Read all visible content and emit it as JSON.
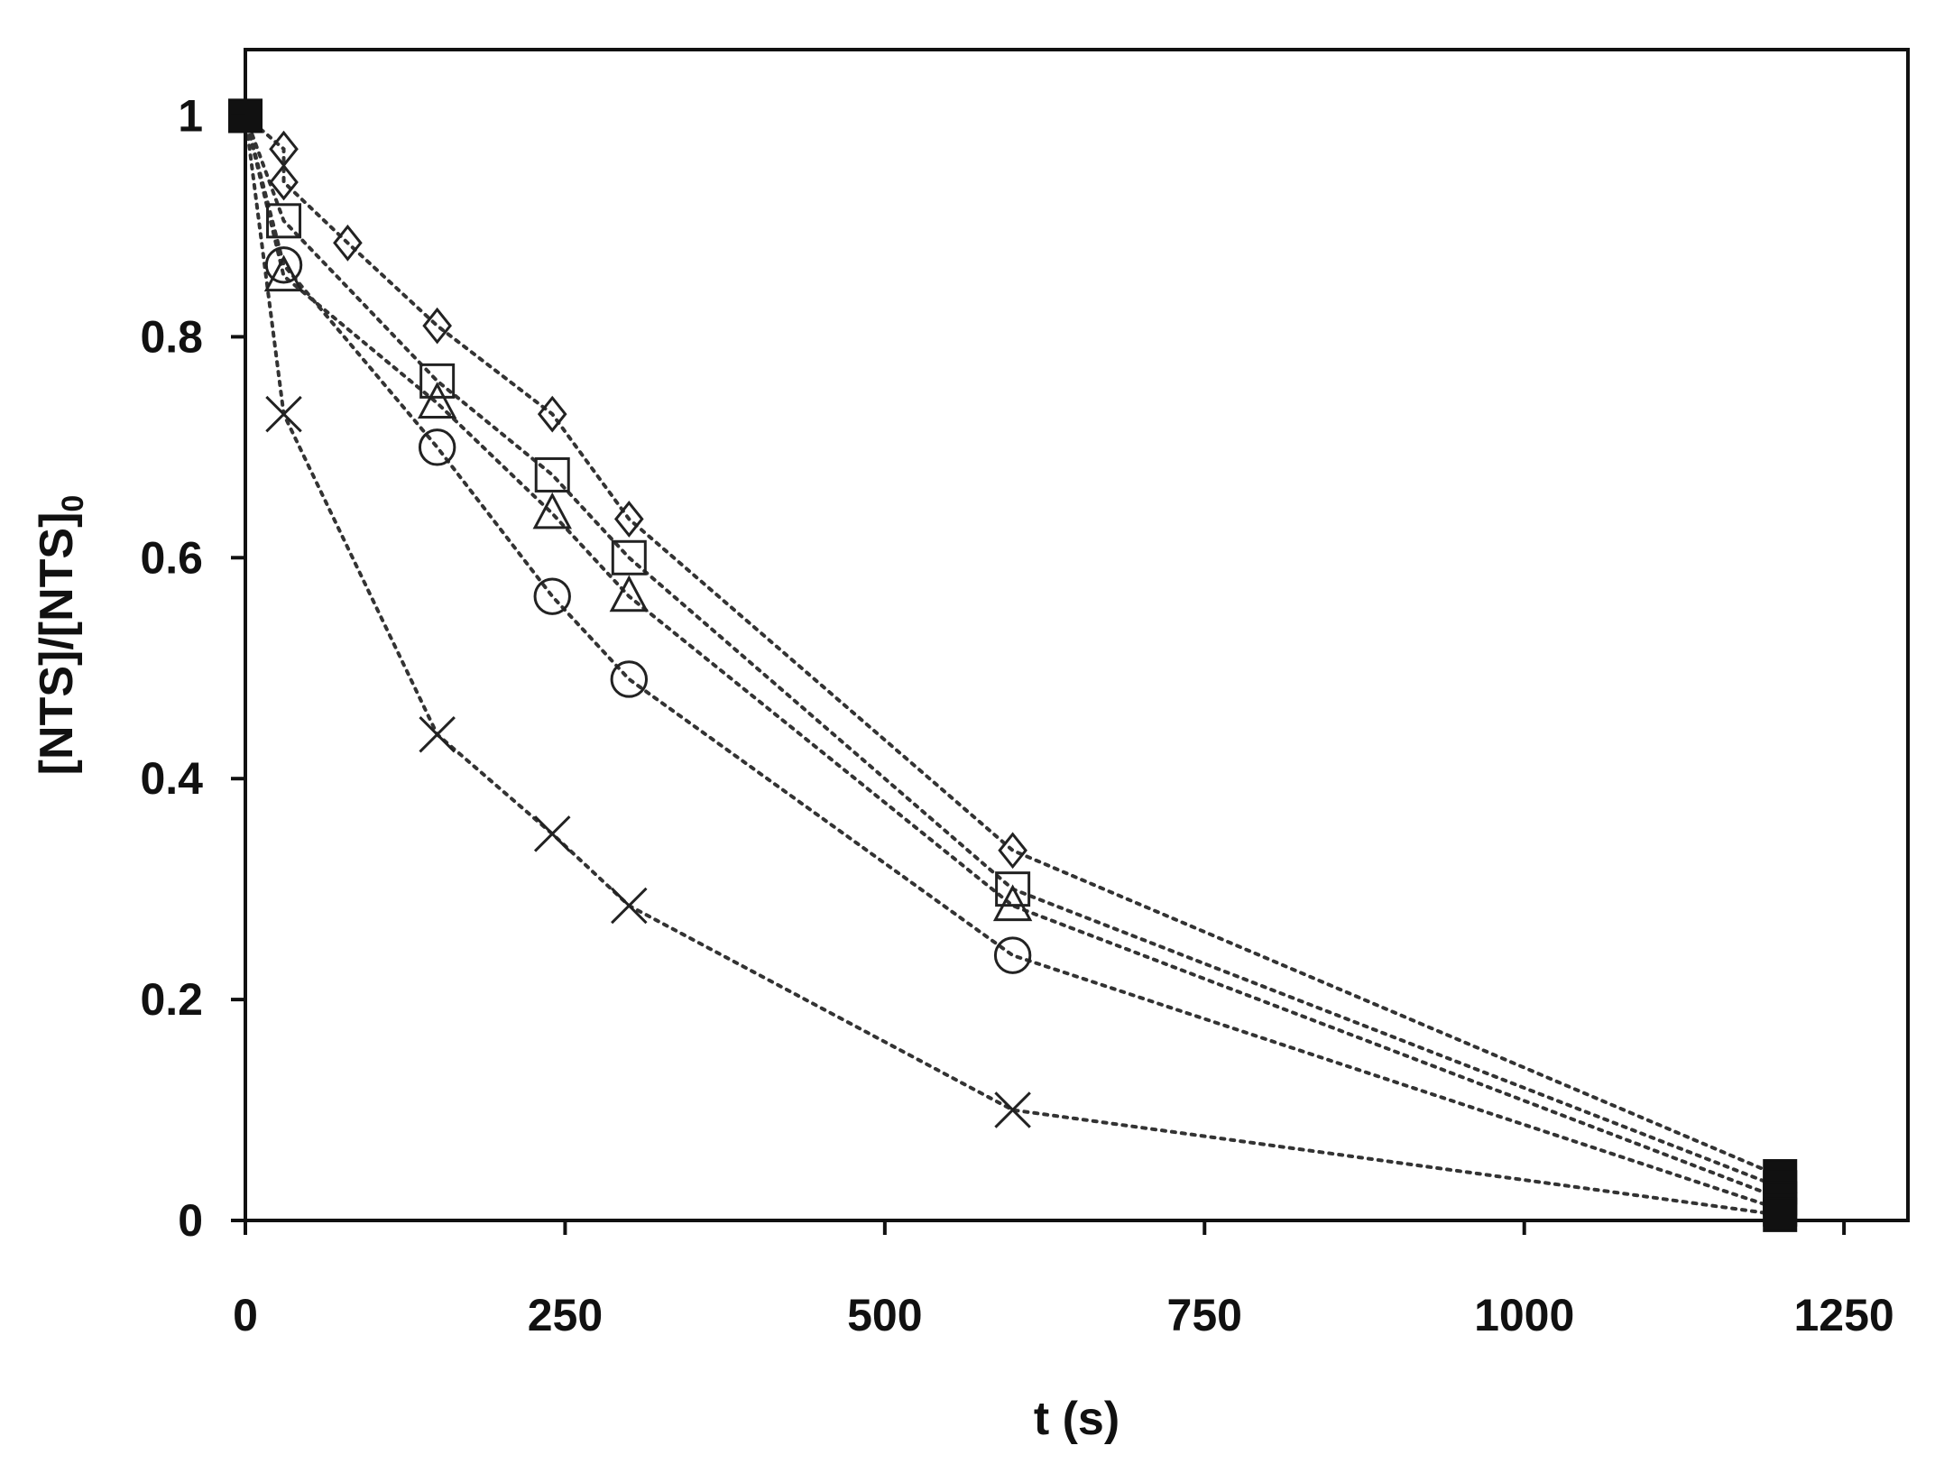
{
  "chart_data": {
    "type": "scatter",
    "title": "",
    "xlabel": "t (s)",
    "ylabel_main": "[NTS]/[NTS]",
    "ylabel_sub": "0",
    "xlim": [
      0,
      1300
    ],
    "ylim": [
      0,
      1.06
    ],
    "xticks": [
      {
        "value": 0,
        "label": "0"
      },
      {
        "value": 250,
        "label": "250"
      },
      {
        "value": 500,
        "label": "500"
      },
      {
        "value": 750,
        "label": "750"
      },
      {
        "value": 1000,
        "label": "1000"
      },
      {
        "value": 1250,
        "label": "1250"
      }
    ],
    "yticks": [
      {
        "value": 0,
        "label": "0"
      },
      {
        "value": 0.2,
        "label": "0.2"
      },
      {
        "value": 0.4,
        "label": "0.4"
      },
      {
        "value": 0.6,
        "label": "0.6"
      },
      {
        "value": 0.8,
        "label": "0.8"
      },
      {
        "value": 1,
        "label": "1"
      }
    ],
    "grid": false,
    "legend": "none",
    "series": [
      {
        "marker": "diamond",
        "points": [
          [
            0,
            1.0
          ],
          [
            30,
            0.97
          ],
          [
            30,
            0.94
          ],
          [
            80,
            0.885
          ],
          [
            150,
            0.81
          ],
          [
            240,
            0.73
          ],
          [
            300,
            0.635
          ],
          [
            600,
            0.335
          ],
          [
            1200,
            0.04
          ]
        ]
      },
      {
        "marker": "square",
        "points": [
          [
            0,
            1.0
          ],
          [
            30,
            0.905
          ],
          [
            150,
            0.76
          ],
          [
            240,
            0.675
          ],
          [
            300,
            0.6
          ],
          [
            600,
            0.3
          ],
          [
            1200,
            0.03
          ]
        ]
      },
      {
        "marker": "triangle",
        "points": [
          [
            0,
            1.0
          ],
          [
            30,
            0.855
          ],
          [
            150,
            0.74
          ],
          [
            240,
            0.64
          ],
          [
            300,
            0.565
          ],
          [
            600,
            0.285
          ],
          [
            1200,
            0.02
          ]
        ]
      },
      {
        "marker": "circle",
        "points": [
          [
            0,
            1.0
          ],
          [
            30,
            0.865
          ],
          [
            150,
            0.7
          ],
          [
            240,
            0.565
          ],
          [
            300,
            0.49
          ],
          [
            600,
            0.24
          ],
          [
            1200,
            0.01
          ]
        ]
      },
      {
        "marker": "cross",
        "points": [
          [
            0,
            1.0
          ],
          [
            30,
            0.73
          ],
          [
            150,
            0.44
          ],
          [
            240,
            0.35
          ],
          [
            300,
            0.285
          ],
          [
            600,
            0.1
          ],
          [
            1200,
            0.005
          ]
        ]
      }
    ]
  }
}
